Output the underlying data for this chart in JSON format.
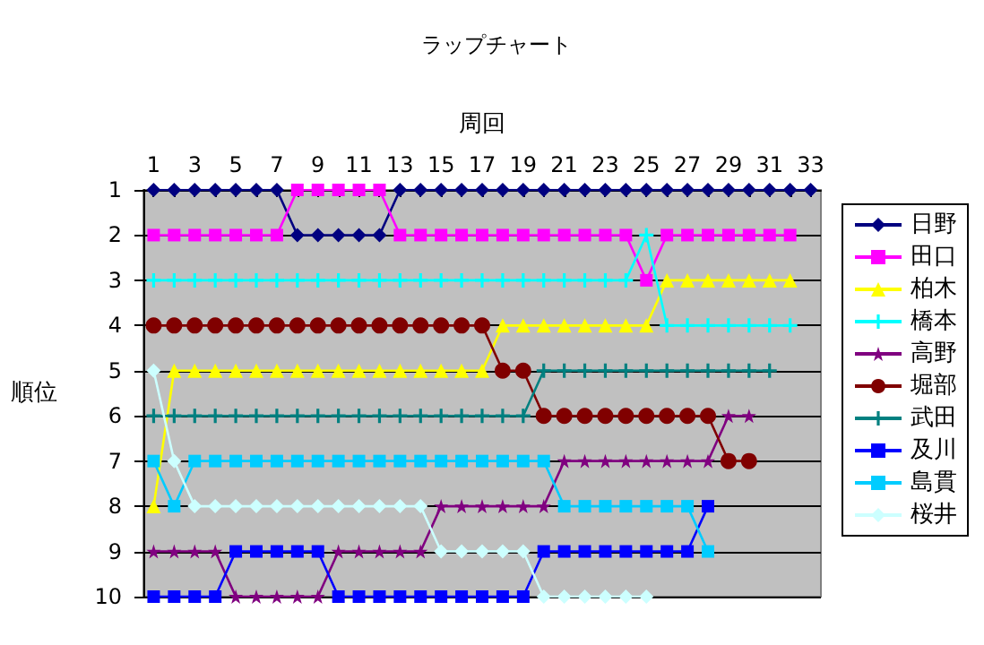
{
  "chart_data": {
    "type": "line",
    "title": "ラップチャート",
    "xlabel": "周回",
    "ylabel": "順位",
    "x": [
      1,
      2,
      3,
      4,
      5,
      6,
      7,
      8,
      9,
      10,
      11,
      12,
      13,
      14,
      15,
      16,
      17,
      18,
      19,
      20,
      21,
      22,
      23,
      24,
      25,
      26,
      27,
      28,
      29,
      30,
      31,
      32,
      33
    ],
    "xlim": [
      0.5,
      33.5
    ],
    "xticks": [
      1,
      {
        "value": 2,
        "label": null
      },
      3,
      {
        "value": 4,
        "label": null
      },
      5,
      {
        "value": 6,
        "label": null
      },
      7,
      {
        "value": 8,
        "label": null
      },
      9,
      {
        "value": 10,
        "label": null
      },
      11,
      {
        "value": 12,
        "label": null
      },
      13,
      {
        "value": 14,
        "label": null
      },
      15,
      {
        "value": 16,
        "label": null
      },
      17,
      {
        "value": 18,
        "label": null
      },
      19,
      {
        "value": 20,
        "label": null
      },
      21,
      {
        "value": 22,
        "label": null
      },
      23,
      {
        "value": 24,
        "label": null
      },
      25,
      {
        "value": 26,
        "label": null
      },
      27,
      {
        "value": 28,
        "label": null
      },
      29,
      {
        "value": 30,
        "label": null
      },
      31,
      {
        "value": 32,
        "label": null
      },
      33
    ],
    "ylim": [
      10,
      1
    ],
    "yticks": [
      1,
      2,
      3,
      4,
      5,
      6,
      7,
      8,
      9,
      10
    ],
    "grid": "y",
    "legend": "right",
    "series": [
      {
        "name": "日野",
        "color": "#000080",
        "marker": "diamond",
        "values": [
          1,
          1,
          1,
          1,
          1,
          1,
          1,
          2,
          2,
          2,
          2,
          2,
          1,
          1,
          1,
          1,
          1,
          1,
          1,
          1,
          1,
          1,
          1,
          1,
          1,
          1,
          1,
          1,
          1,
          1,
          1,
          1,
          1
        ]
      },
      {
        "name": "田口",
        "color": "#ff00ff",
        "marker": "square",
        "values": [
          2,
          2,
          2,
          2,
          2,
          2,
          2,
          1,
          1,
          1,
          1,
          1,
          2,
          2,
          2,
          2,
          2,
          2,
          2,
          2,
          2,
          2,
          2,
          2,
          3,
          2,
          2,
          2,
          2,
          2,
          2,
          2,
          null
        ]
      },
      {
        "name": "柏木",
        "color": "#ffff00",
        "marker": "triangle",
        "values": [
          8,
          5,
          5,
          5,
          5,
          5,
          5,
          5,
          5,
          5,
          5,
          5,
          5,
          5,
          5,
          5,
          5,
          4,
          4,
          4,
          4,
          4,
          4,
          4,
          4,
          3,
          3,
          3,
          3,
          3,
          3,
          3,
          null
        ]
      },
      {
        "name": "橋本",
        "color": "#00ffff",
        "marker": "cross",
        "values": [
          3,
          3,
          3,
          3,
          3,
          3,
          3,
          3,
          3,
          3,
          3,
          3,
          3,
          3,
          3,
          3,
          3,
          3,
          3,
          3,
          3,
          3,
          3,
          3,
          2,
          4,
          4,
          4,
          4,
          4,
          4,
          4,
          null
        ]
      },
      {
        "name": "高野",
        "color": "#800080",
        "marker": "star",
        "values": [
          9,
          9,
          9,
          9,
          10,
          10,
          10,
          10,
          10,
          9,
          9,
          9,
          9,
          9,
          8,
          8,
          8,
          8,
          8,
          8,
          7,
          7,
          7,
          7,
          7,
          7,
          7,
          7,
          6,
          6,
          null,
          null,
          null
        ]
      },
      {
        "name": "堀部",
        "color": "#800000",
        "marker": "circle",
        "values": [
          4,
          4,
          4,
          4,
          4,
          4,
          4,
          4,
          4,
          4,
          4,
          4,
          4,
          4,
          4,
          4,
          4,
          5,
          5,
          6,
          6,
          6,
          6,
          6,
          6,
          6,
          6,
          6,
          7,
          7,
          null,
          null,
          null
        ]
      },
      {
        "name": "武田",
        "color": "#008080",
        "marker": "cross",
        "values": [
          6,
          6,
          6,
          6,
          6,
          6,
          6,
          6,
          6,
          6,
          6,
          6,
          6,
          6,
          6,
          6,
          6,
          6,
          6,
          5,
          5,
          5,
          5,
          5,
          5,
          5,
          5,
          5,
          5,
          5,
          5,
          null,
          null
        ]
      },
      {
        "name": "及川",
        "color": "#0000ff",
        "marker": "square",
        "values": [
          10,
          10,
          10,
          10,
          9,
          9,
          9,
          9,
          9,
          10,
          10,
          10,
          10,
          10,
          10,
          10,
          10,
          10,
          10,
          9,
          9,
          9,
          9,
          9,
          9,
          9,
          9,
          8,
          null,
          null,
          null,
          null,
          null
        ]
      },
      {
        "name": "島貫",
        "color": "#00ccff",
        "marker": "square",
        "values": [
          7,
          8,
          7,
          7,
          7,
          7,
          7,
          7,
          7,
          7,
          7,
          7,
          7,
          7,
          7,
          7,
          7,
          7,
          7,
          7,
          8,
          8,
          8,
          8,
          8,
          8,
          8,
          9,
          null,
          null,
          null,
          null,
          null
        ]
      },
      {
        "name": "桜井",
        "color": "#ccffff",
        "marker": "diamond",
        "values": [
          5,
          7,
          8,
          8,
          8,
          8,
          8,
          8,
          8,
          8,
          8,
          8,
          8,
          8,
          9,
          9,
          9,
          9,
          9,
          10,
          10,
          10,
          10,
          10,
          10,
          null,
          null,
          null,
          null,
          null,
          null,
          null,
          null
        ]
      }
    ]
  }
}
